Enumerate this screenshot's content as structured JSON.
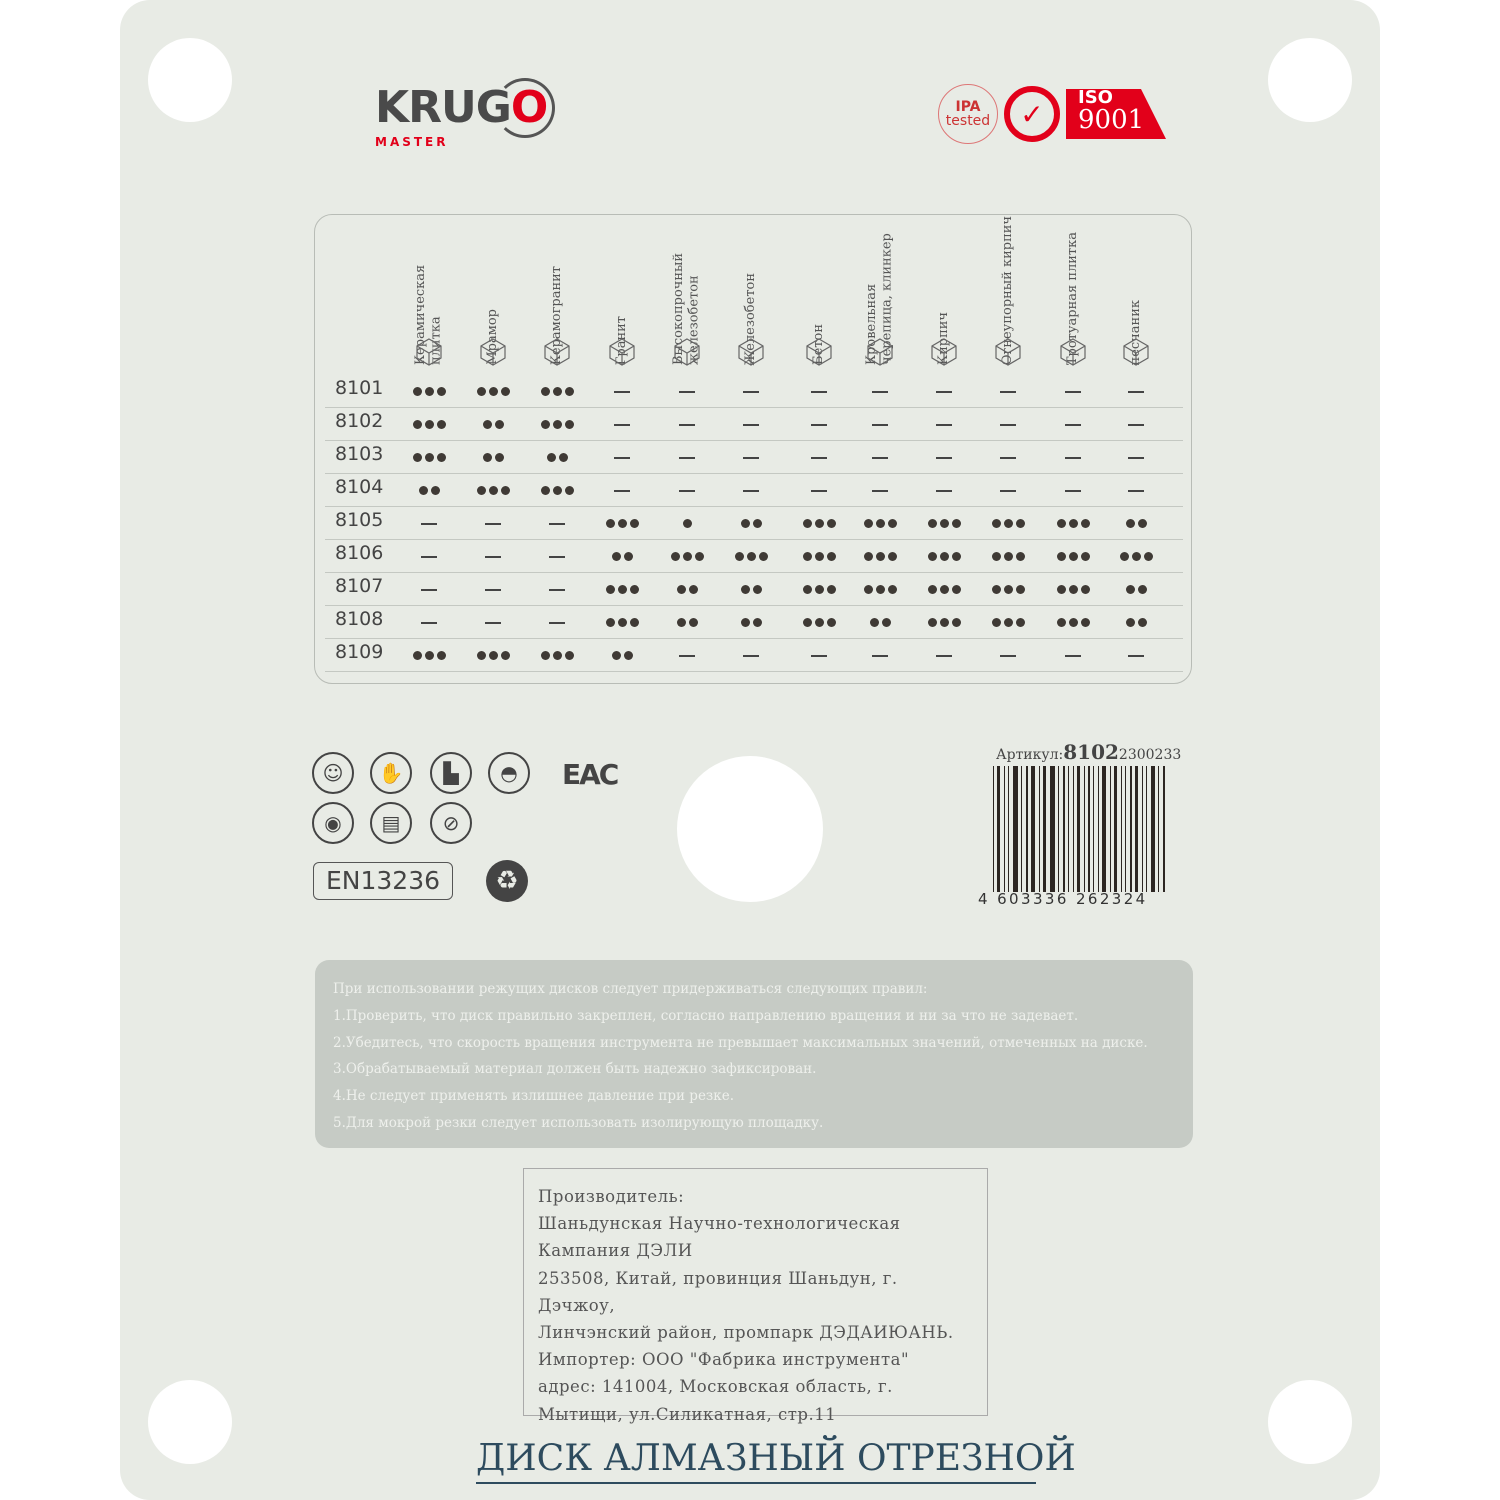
{
  "brand": {
    "name_pre": "KRUG",
    "name_o": "O",
    "sub": "MASTER"
  },
  "certs": {
    "ipa_top": "IPA",
    "ipa_bottom": "tested",
    "iso_top": "ISO",
    "iso_bottom": "9001"
  },
  "colors": {
    "accent": "#e2001a",
    "background": "#e8ebe5",
    "title": "#2d4b5e"
  },
  "table": {
    "materials": [
      {
        "label": "Керамическая плитка",
        "icon": "ceramic-tile-icon"
      },
      {
        "label": "Мрамор",
        "icon": "marble-column-icon"
      },
      {
        "label": "Керамогранит",
        "icon": "porcelain-tile-icon"
      },
      {
        "label": "Гранит",
        "icon": "granite-icon"
      },
      {
        "label": "Высокопрочный железобетон",
        "icon": "high-strength-concrete-icon"
      },
      {
        "label": "Железобетон",
        "icon": "reinforced-concrete-icon"
      },
      {
        "label": "Бетон",
        "icon": "concrete-block-icon"
      },
      {
        "label": "Кровельная черепица, клинкер",
        "icon": "roof-tile-icon"
      },
      {
        "label": "Кирпич",
        "icon": "brick-icon"
      },
      {
        "label": "Огнеупорный кирпич",
        "icon": "firebrick-icon"
      },
      {
        "label": "Тротуарная плитка",
        "icon": "paving-tile-icon"
      },
      {
        "label": "песчаник",
        "icon": "sandstone-icon"
      }
    ],
    "rows": [
      {
        "id": "8101",
        "rating": [
          3,
          3,
          3,
          0,
          0,
          0,
          0,
          0,
          0,
          0,
          0,
          0
        ]
      },
      {
        "id": "8102",
        "rating": [
          3,
          2,
          3,
          0,
          0,
          0,
          0,
          0,
          0,
          0,
          0,
          0
        ]
      },
      {
        "id": "8103",
        "rating": [
          3,
          2,
          2,
          0,
          0,
          0,
          0,
          0,
          0,
          0,
          0,
          0
        ]
      },
      {
        "id": "8104",
        "rating": [
          2,
          3,
          3,
          0,
          0,
          0,
          0,
          0,
          0,
          0,
          0,
          0
        ]
      },
      {
        "id": "8105",
        "rating": [
          0,
          0,
          0,
          3,
          1,
          2,
          3,
          3,
          3,
          3,
          3,
          2
        ]
      },
      {
        "id": "8106",
        "rating": [
          0,
          0,
          0,
          2,
          3,
          3,
          3,
          3,
          3,
          3,
          3,
          3
        ]
      },
      {
        "id": "8107",
        "rating": [
          0,
          0,
          0,
          3,
          2,
          2,
          3,
          3,
          3,
          3,
          3,
          2
        ]
      },
      {
        "id": "8108",
        "rating": [
          0,
          0,
          0,
          3,
          2,
          2,
          3,
          2,
          3,
          3,
          3,
          2
        ]
      },
      {
        "id": "8109",
        "rating": [
          3,
          3,
          3,
          2,
          0,
          0,
          0,
          0,
          0,
          0,
          0,
          0
        ]
      }
    ]
  },
  "safety_icons": [
    "respirator-icon",
    "gloves-icon",
    "boots-icon",
    "helmet-icon",
    "goggles-icon",
    "manual-icon",
    "no-wet-icon"
  ],
  "eac": "EAC",
  "standard": "EN13236",
  "article": {
    "label": "Артикул:",
    "code": "8102",
    "suffix": "2300233",
    "barcode": "4 603336 262324"
  },
  "rules": [
    "При использовании режущих дисков следует придерживаться следующих правил:",
    "1.Проверить, что диск правильно закреплен, согласно направлению вращения и ни за что не задевает.",
    "2.Убедитесь, что скорость вращения инструмента не превышает максимальных значений, отмеченных на диске.",
    "3.Обрабатываемый материал должен быть надежно зафиксирован.",
    "4.Не следует применять излишнее давление при резке.",
    "5.Для мокрой резки следует использовать изолирующую площадку."
  ],
  "manufacturer": [
    "Производитель:",
    "Шаньдунская Научно-технологическая",
    "Кампания ДЭЛИ",
    "253508, Китай, провинция Шаньдун, г. Дэчжоу,",
    "Линчэнский район, промпарк ДЭДАИЮАНЬ.",
    "Импортер: ООО \"Фабрика инструмента\"",
    "адрес: 141004, Московская область, г.",
    "Мытищи, ул.Силикатная, стр.11"
  ],
  "product_title": "ДИСК АЛМАЗНЫЙ ОТРЕЗНОЙ"
}
